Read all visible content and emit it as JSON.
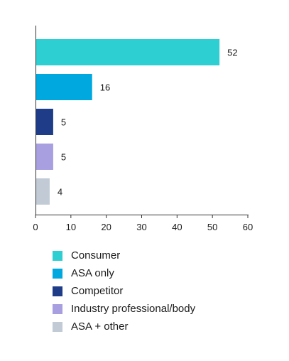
{
  "chart_data": {
    "type": "bar",
    "orientation": "horizontal",
    "categories": [
      "Consumer",
      "ASA only",
      "Competitor",
      "Industry professional/body",
      "ASA + other"
    ],
    "values": [
      52,
      16,
      5,
      5,
      4
    ],
    "value_labels": [
      "52",
      "16",
      "5",
      "5",
      "4"
    ],
    "colors": [
      "#2dcfd2",
      "#00a8e0",
      "#1f3c88",
      "#a79fe0",
      "#c2cad6"
    ],
    "xlim": [
      0,
      60
    ],
    "xticks": [
      0,
      10,
      20,
      30,
      40,
      50,
      60
    ],
    "title": "",
    "xlabel": "",
    "ylabel": "",
    "grid": false,
    "legend_placement": "bottom"
  }
}
